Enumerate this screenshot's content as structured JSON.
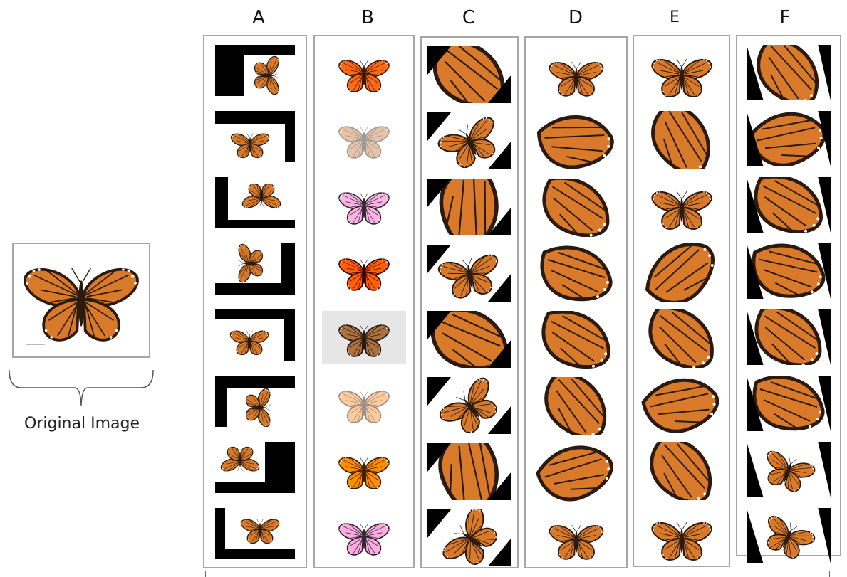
{
  "original": {
    "label": "Original Image"
  },
  "columns": [
    {
      "letter": "A",
      "variant": "rotated-with-black-fill"
    },
    {
      "letter": "B",
      "variant": "color-jitter"
    },
    {
      "letter": "C",
      "variant": "rotated-crop"
    },
    {
      "letter": "D",
      "variant": "random-crop"
    },
    {
      "letter": "E",
      "variant": "random-crop"
    },
    {
      "letter": "F",
      "variant": "sheared-crop"
    }
  ],
  "colors": {
    "wing": "#d97a2a",
    "wing_bright": "#e8641c",
    "wing_pale": "#f2c89a",
    "wing_lavender": "#e6cde0",
    "vein": "#2b1a10",
    "border": "#a6a6a6",
    "fill_black": "#000000"
  }
}
